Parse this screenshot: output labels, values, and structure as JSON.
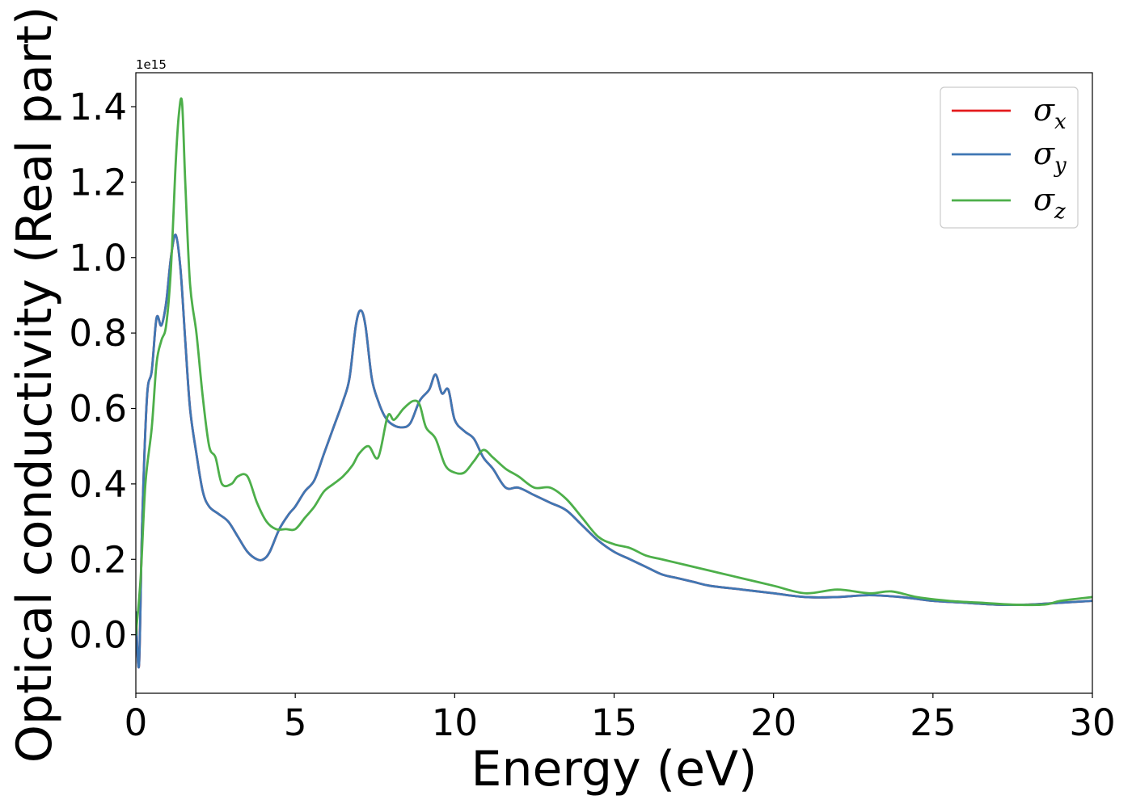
{
  "chart_data": {
    "type": "line",
    "title": "",
    "xlabel": "Energy (eV)",
    "ylabel": "Optical conductivity (Real part)",
    "y_offset_label": "1e15",
    "xlim": [
      0,
      30
    ],
    "ylim": [
      -0.155,
      1.49
    ],
    "xticks": [
      0,
      5,
      10,
      15,
      20,
      25,
      30
    ],
    "xtick_labels": [
      "0",
      "5",
      "10",
      "15",
      "20",
      "25",
      "30"
    ],
    "yticks": [
      0.0,
      0.2,
      0.4,
      0.6,
      0.8,
      1.0,
      1.2,
      1.4
    ],
    "ytick_labels": [
      "0.0",
      "0.2",
      "0.4",
      "0.6",
      "0.8",
      "1.0",
      "1.2",
      "1.4"
    ],
    "grid": false,
    "legend_position": "top-right",
    "series": [
      {
        "name": "σ",
        "subscript": "x",
        "color": "#e41a1c",
        "x": [
          0,
          0.1,
          0.2,
          0.35,
          0.5,
          0.65,
          0.8,
          0.95,
          1.1,
          1.25,
          1.4,
          1.55,
          1.7,
          1.9,
          2.1,
          2.3,
          2.6,
          2.9,
          3.2,
          3.5,
          3.8,
          4.0,
          4.2,
          4.5,
          4.8,
          5.0,
          5.3,
          5.6,
          5.9,
          6.2,
          6.5,
          6.7,
          6.9,
          7.05,
          7.2,
          7.4,
          7.6,
          7.8,
          8.0,
          8.3,
          8.6,
          8.9,
          9.2,
          9.4,
          9.6,
          9.8,
          10.0,
          10.3,
          10.6,
          10.9,
          11.2,
          11.6,
          12.0,
          12.5,
          13.0,
          13.5,
          14.0,
          14.5,
          15.0,
          15.5,
          16.0,
          16.5,
          17.0,
          17.5,
          18.0,
          19.0,
          20.0,
          21.0,
          22.0,
          23.0,
          24.0,
          25.0,
          26.0,
          27.0,
          28.0,
          29.0,
          30.0
        ],
        "y": [
          0.06,
          -0.08,
          0.3,
          0.63,
          0.7,
          0.84,
          0.82,
          0.88,
          1.0,
          1.06,
          0.97,
          0.78,
          0.6,
          0.48,
          0.38,
          0.34,
          0.32,
          0.3,
          0.26,
          0.22,
          0.2,
          0.2,
          0.22,
          0.28,
          0.32,
          0.34,
          0.38,
          0.41,
          0.48,
          0.55,
          0.62,
          0.68,
          0.82,
          0.86,
          0.82,
          0.68,
          0.62,
          0.58,
          0.56,
          0.55,
          0.56,
          0.62,
          0.65,
          0.69,
          0.64,
          0.65,
          0.57,
          0.54,
          0.52,
          0.47,
          0.44,
          0.39,
          0.39,
          0.37,
          0.35,
          0.33,
          0.29,
          0.25,
          0.22,
          0.2,
          0.18,
          0.16,
          0.15,
          0.14,
          0.13,
          0.12,
          0.11,
          0.1,
          0.1,
          0.105,
          0.1,
          0.09,
          0.085,
          0.08,
          0.08,
          0.085,
          0.09
        ]
      },
      {
        "name": "σ",
        "subscript": "y",
        "color": "#3f77b4",
        "x": [
          0,
          0.1,
          0.2,
          0.35,
          0.5,
          0.65,
          0.8,
          0.95,
          1.1,
          1.25,
          1.4,
          1.55,
          1.7,
          1.9,
          2.1,
          2.3,
          2.6,
          2.9,
          3.2,
          3.5,
          3.8,
          4.0,
          4.2,
          4.5,
          4.8,
          5.0,
          5.3,
          5.6,
          5.9,
          6.2,
          6.5,
          6.7,
          6.9,
          7.05,
          7.2,
          7.4,
          7.6,
          7.8,
          8.0,
          8.3,
          8.6,
          8.9,
          9.2,
          9.4,
          9.6,
          9.8,
          10.0,
          10.3,
          10.6,
          10.9,
          11.2,
          11.6,
          12.0,
          12.5,
          13.0,
          13.5,
          14.0,
          14.5,
          15.0,
          15.5,
          16.0,
          16.5,
          17.0,
          17.5,
          18.0,
          19.0,
          20.0,
          21.0,
          22.0,
          23.0,
          24.0,
          25.0,
          26.0,
          27.0,
          28.0,
          29.0,
          30.0
        ],
        "y": [
          0.06,
          -0.08,
          0.3,
          0.63,
          0.7,
          0.84,
          0.82,
          0.88,
          1.0,
          1.06,
          0.97,
          0.78,
          0.6,
          0.48,
          0.38,
          0.34,
          0.32,
          0.3,
          0.26,
          0.22,
          0.2,
          0.2,
          0.22,
          0.28,
          0.32,
          0.34,
          0.38,
          0.41,
          0.48,
          0.55,
          0.62,
          0.68,
          0.82,
          0.86,
          0.82,
          0.68,
          0.62,
          0.58,
          0.56,
          0.55,
          0.56,
          0.62,
          0.65,
          0.69,
          0.64,
          0.65,
          0.57,
          0.54,
          0.52,
          0.47,
          0.44,
          0.39,
          0.39,
          0.37,
          0.35,
          0.33,
          0.29,
          0.25,
          0.22,
          0.2,
          0.18,
          0.16,
          0.15,
          0.14,
          0.13,
          0.12,
          0.11,
          0.1,
          0.1,
          0.105,
          0.1,
          0.09,
          0.085,
          0.08,
          0.08,
          0.085,
          0.09
        ]
      },
      {
        "name": "σ",
        "subscript": "z",
        "color": "#4daf4a",
        "x": [
          0,
          0.15,
          0.3,
          0.5,
          0.65,
          0.8,
          0.95,
          1.1,
          1.25,
          1.35,
          1.45,
          1.55,
          1.7,
          1.9,
          2.1,
          2.3,
          2.5,
          2.7,
          3.0,
          3.2,
          3.5,
          3.8,
          4.1,
          4.4,
          4.7,
          5.0,
          5.3,
          5.6,
          5.9,
          6.2,
          6.5,
          6.8,
          7.0,
          7.3,
          7.6,
          7.9,
          8.1,
          8.4,
          8.7,
          8.9,
          9.1,
          9.4,
          9.7,
          10.0,
          10.3,
          10.6,
          10.9,
          11.2,
          11.6,
          12.0,
          12.5,
          13.0,
          13.5,
          14.0,
          14.5,
          15.0,
          15.5,
          16.0,
          16.5,
          17.0,
          17.5,
          18.0,
          19.0,
          20.0,
          21.0,
          22.0,
          23.0,
          23.7,
          24.5,
          25.5,
          26.5,
          27.5,
          28.5,
          29.0,
          30.0
        ],
        "y": [
          0.0,
          0.15,
          0.4,
          0.55,
          0.72,
          0.78,
          0.82,
          0.97,
          1.25,
          1.38,
          1.41,
          1.2,
          0.93,
          0.8,
          0.63,
          0.5,
          0.47,
          0.4,
          0.4,
          0.42,
          0.42,
          0.35,
          0.3,
          0.28,
          0.28,
          0.28,
          0.31,
          0.34,
          0.38,
          0.4,
          0.42,
          0.45,
          0.48,
          0.5,
          0.47,
          0.58,
          0.57,
          0.6,
          0.62,
          0.61,
          0.55,
          0.52,
          0.45,
          0.43,
          0.43,
          0.46,
          0.49,
          0.47,
          0.44,
          0.42,
          0.39,
          0.39,
          0.36,
          0.31,
          0.26,
          0.24,
          0.23,
          0.21,
          0.2,
          0.19,
          0.18,
          0.17,
          0.15,
          0.13,
          0.11,
          0.12,
          0.11,
          0.115,
          0.1,
          0.09,
          0.085,
          0.08,
          0.08,
          0.09,
          0.1
        ]
      }
    ]
  }
}
